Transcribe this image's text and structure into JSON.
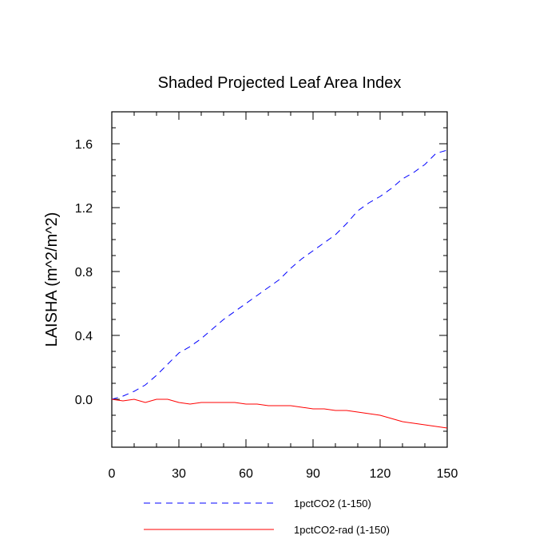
{
  "chart_data": {
    "type": "line",
    "title": "Shaded Projected Leaf Area Index",
    "xlabel": "",
    "ylabel": "LAISHA  (m^2/m^2)",
    "xlim": [
      0,
      150
    ],
    "ylim": [
      -0.3,
      1.8
    ],
    "xticks": [
      0,
      30,
      60,
      90,
      120,
      150
    ],
    "yticks": [
      0.0,
      0.4,
      0.8,
      1.2,
      1.6
    ],
    "xtick_labels": [
      "0",
      "30",
      "60",
      "90",
      "120",
      "150"
    ],
    "ytick_labels": [
      "0.0",
      "0.4",
      "0.8",
      "1.2",
      "1.6"
    ],
    "grid": false,
    "legend_position": "bottom",
    "series": [
      {
        "name": "1pctCO2 (1-150)",
        "color": "#0000ff",
        "style": "dashed",
        "x": [
          0,
          5,
          10,
          15,
          20,
          25,
          30,
          35,
          40,
          45,
          50,
          55,
          60,
          65,
          70,
          75,
          80,
          85,
          90,
          95,
          100,
          105,
          110,
          115,
          120,
          125,
          130,
          135,
          140,
          145,
          150
        ],
        "values": [
          0.0,
          0.02,
          0.05,
          0.09,
          0.15,
          0.22,
          0.29,
          0.33,
          0.38,
          0.44,
          0.5,
          0.55,
          0.6,
          0.65,
          0.7,
          0.75,
          0.82,
          0.88,
          0.93,
          0.98,
          1.03,
          1.1,
          1.18,
          1.23,
          1.27,
          1.32,
          1.38,
          1.42,
          1.47,
          1.54,
          1.56
        ]
      },
      {
        "name": "1pctCO2-rad (1-150)",
        "color": "#ff0000",
        "style": "solid",
        "x": [
          0,
          5,
          10,
          15,
          20,
          25,
          30,
          35,
          40,
          45,
          50,
          55,
          60,
          65,
          70,
          75,
          80,
          85,
          90,
          95,
          100,
          105,
          110,
          115,
          120,
          125,
          130,
          135,
          140,
          145,
          150
        ],
        "values": [
          0.0,
          -0.01,
          0.0,
          -0.02,
          0.0,
          0.0,
          -0.02,
          -0.03,
          -0.02,
          -0.02,
          -0.02,
          -0.02,
          -0.03,
          -0.03,
          -0.04,
          -0.04,
          -0.04,
          -0.05,
          -0.06,
          -0.06,
          -0.07,
          -0.07,
          -0.08,
          -0.09,
          -0.1,
          -0.12,
          -0.14,
          -0.15,
          -0.16,
          -0.17,
          -0.18
        ]
      }
    ]
  }
}
